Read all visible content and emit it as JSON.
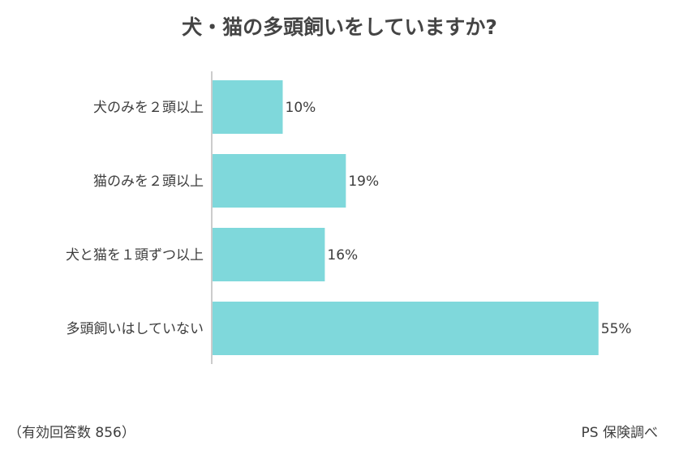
{
  "chart_data": {
    "type": "bar",
    "orientation": "horizontal",
    "title": "犬・猫の多頭飼いをしていますか?",
    "categories": [
      "犬のみを２頭以上",
      "猫のみを２頭以上",
      "犬と猫を１頭ずつ以上",
      "多頭飼いはしていない"
    ],
    "values": [
      10,
      19,
      16,
      55
    ],
    "value_labels": [
      "10%",
      "19%",
      "16%",
      "55%"
    ],
    "unit": "%",
    "bar_color": "#7fd8db",
    "axis_color": "#bbbbbb",
    "grid": false
  },
  "footnote": "（有効回答数 856）",
  "source": "PS 保険調べ"
}
